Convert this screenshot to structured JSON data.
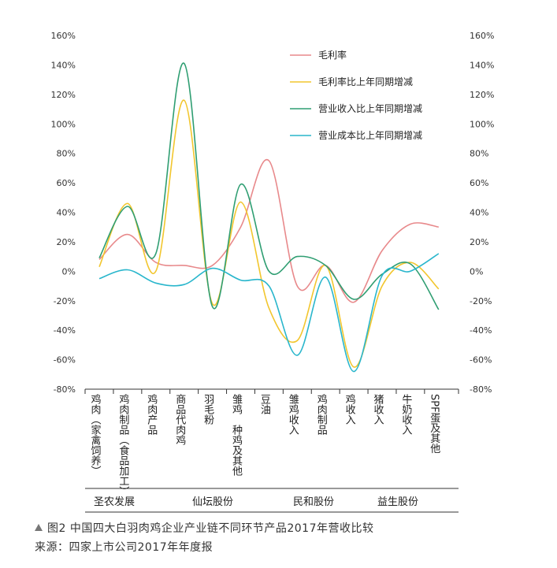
{
  "chart_data": {
    "type": "line",
    "categories": [
      "鸡肉（家禽饲养）",
      "鸡肉制品（食品加工）",
      "鸡肉产品",
      "商品代肉鸡",
      "羽毛粉",
      "雏鸡 种鸡及其他",
      "豆油",
      "雏鸡收入",
      "鸡肉制品",
      "鸡收入",
      "猪收入",
      "牛奶收入",
      "SPF蛋及其他"
    ],
    "groups": [
      {
        "name": "圣农发展",
        "categories": [
          "鸡肉（家禽饲养）",
          "鸡肉制品（食品加工）"
        ]
      },
      {
        "name": "仙坛股份",
        "categories": [
          "鸡肉产品",
          "商品代肉鸡",
          "羽毛粉",
          "雏鸡 种鸡及其他",
          "豆油"
        ]
      },
      {
        "name": "民和股份",
        "categories": [
          "雏鸡收入",
          "鸡肉制品"
        ]
      },
      {
        "name": "益生股份",
        "categories": [
          "鸡收入",
          "猪收入",
          "牛奶收入",
          "SPF蛋及其他"
        ]
      }
    ],
    "series": [
      {
        "name": "毛利率",
        "color": "#e8898b",
        "values": [
          8,
          25,
          6,
          4,
          4,
          30,
          75,
          -10,
          4,
          -21,
          14,
          32,
          30
        ]
      },
      {
        "name": "毛利率比上年同期增减",
        "color": "#f2c62e",
        "values": [
          3,
          46,
          0,
          116,
          -22,
          47,
          -25,
          -47,
          4,
          -65,
          -10,
          6,
          -12
        ]
      },
      {
        "name": "营业收入比上年同期增减",
        "color": "#2f9e72",
        "values": [
          9,
          44,
          12,
          141,
          -24,
          59,
          0,
          10,
          4,
          -19,
          -2,
          5,
          -26
        ]
      },
      {
        "name": "营业成本比上年同期增减",
        "color": "#29b6cc",
        "values": [
          -5,
          1,
          -8,
          -9,
          2,
          -6,
          -10,
          -57,
          -4,
          -68,
          -3,
          0,
          12
        ]
      }
    ],
    "y_ticks": [
      "160%",
      "140%",
      "120%",
      "100%",
      "80%",
      "60%",
      "40%",
      "20%",
      "0%",
      "-20%",
      "-40%",
      "-60%",
      "-80%"
    ],
    "ylim": [
      -80,
      160
    ],
    "y_unit": "%",
    "legend_position": "top-right",
    "grid": false
  },
  "caption": {
    "line1": "图2 中国四大白羽肉鸡企业产业链不同环节产品2017年营收比较",
    "line2": "来源：四家上市公司2017年年度报"
  }
}
